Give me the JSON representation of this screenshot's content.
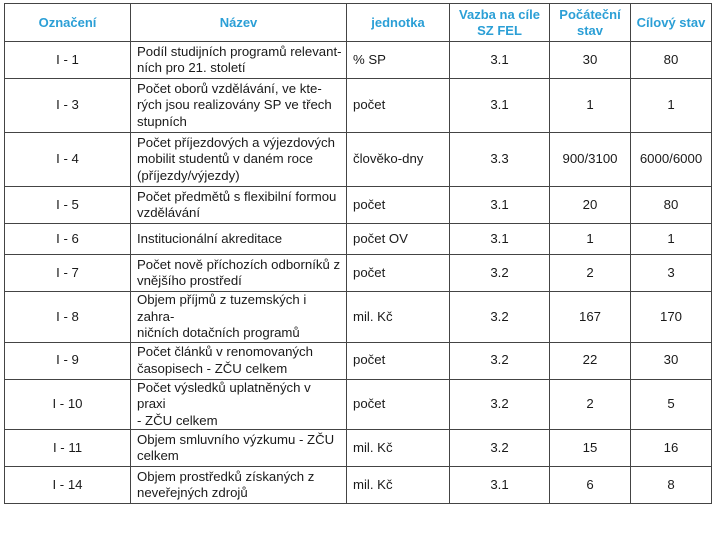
{
  "table": {
    "headers": {
      "oznaceni": "Označení",
      "nazev": "Název",
      "jednotka": "jednotka",
      "vazba_line1": "Vazba na cíle",
      "vazba_line2": "SZ FEL",
      "pocatecni_line1": "Počáteční",
      "pocatecni_line2": "stav",
      "cilovy": "Cílový stav"
    },
    "rows": [
      {
        "id": "I - 1",
        "name": [
          "Podíl studijních programů relevant-",
          "ních pro 21. století"
        ],
        "unit": "% SP",
        "link": "3.1",
        "initial": "30",
        "target": "80"
      },
      {
        "id": "I - 3",
        "name": [
          "Počet oborů vzdělávání, ve kte-",
          "rých jsou realizovány SP ve třech",
          "stupních"
        ],
        "unit": "počet",
        "link": "3.1",
        "initial": "1",
        "target": "1"
      },
      {
        "id": "I - 4",
        "name": [
          "Počet příjezdových a výjezdových",
          "mobilit studentů v daném roce",
          "(příjezdy/výjezdy)"
        ],
        "unit": "člověko-dny",
        "link": "3.3",
        "initial": "900/3100",
        "target": "6000/6000"
      },
      {
        "id": "I - 5",
        "name": [
          "Počet předmětů s flexibilní formou",
          "vzdělávání"
        ],
        "unit": "počet",
        "link": "3.1",
        "initial": "20",
        "target": "80"
      },
      {
        "id": "I - 6",
        "name": [
          "Institucionální akreditace"
        ],
        "unit": "počet OV",
        "link": "3.1",
        "initial": "1",
        "target": "1"
      },
      {
        "id": "I - 7",
        "name": [
          "Počet nově příchozích odborníků z",
          "vnějšího prostředí"
        ],
        "unit": "počet",
        "link": "3.2",
        "initial": "2",
        "target": "3"
      },
      {
        "id": "I - 8",
        "name": [
          "Objem příjmů z tuzemských i zahra-",
          "ničních dotačních programů"
        ],
        "unit": "mil. Kč",
        "link": "3.2",
        "initial": "167",
        "target": "170"
      },
      {
        "id": "I - 9",
        "name": [
          "Počet článků v renomovaných",
          "časopisech - ZČU celkem"
        ],
        "unit": "počet",
        "link": "3.2",
        "initial": "22",
        "target": "30"
      },
      {
        "id": "I - 10",
        "name": [
          "Počet výsledků uplatněných v praxi",
          "- ZČU celkem"
        ],
        "unit": "počet",
        "link": "3.2",
        "initial": "2",
        "target": "5"
      },
      {
        "id": "I - 11",
        "name": [
          "Objem smluvního výzkumu  - ZČU",
          "celkem"
        ],
        "unit": "mil. Kč",
        "link": "3.2",
        "initial": "15",
        "target": "16"
      },
      {
        "id": "I - 14",
        "name": [
          "Objem prostředků získaných z",
          "neveřejných zdrojů"
        ],
        "unit": "mil. Kč",
        "link": "3.1",
        "initial": "6",
        "target": "8"
      }
    ]
  },
  "colors": {
    "header_text": "#2b9fd6",
    "border": "#444444",
    "text": "#1a1a1a"
  }
}
